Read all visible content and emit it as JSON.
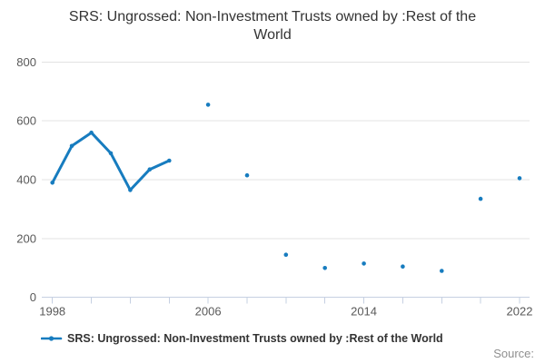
{
  "title": "SRS: Ungrossed: Non-Investment Trusts owned by :Rest of the World",
  "legend": {
    "label": "SRS: Ungrossed: Non-Investment Trusts owned by :Rest of the World"
  },
  "source_label": "Source:",
  "colors": {
    "series": "#177cbf",
    "grid": "#e3e3e3",
    "axis": "#c6d0e2",
    "text": "#333333",
    "tick_label": "#595959",
    "source": "#8f8f8f"
  },
  "chart_data": {
    "type": "line",
    "title": "SRS: Ungrossed: Non-Investment Trusts owned by :Rest of the World",
    "xlabel": "",
    "ylabel": "",
    "x_range": [
      1998,
      2022
    ],
    "x_tick_interval": 2,
    "x_ticks_labeled": [
      1998,
      2006,
      2014,
      2022
    ],
    "y_ticks": [
      0,
      200,
      400,
      600,
      800
    ],
    "ylim": [
      0,
      800
    ],
    "grid": true,
    "legend_position": "bottom",
    "marker": "dot",
    "note": "points with a 1-year gap are joined by a line; biennial points 2006-2022 are isolated markers",
    "series": [
      {
        "name": "SRS: Ungrossed: Non-Investment Trusts owned by :Rest of the World",
        "points": [
          [
            1998,
            390
          ],
          [
            1999,
            515
          ],
          [
            2000,
            560
          ],
          [
            2001,
            490
          ],
          [
            2002,
            365
          ],
          [
            2003,
            435
          ],
          [
            2004,
            465
          ],
          [
            2006,
            655
          ],
          [
            2008,
            415
          ],
          [
            2010,
            145
          ],
          [
            2012,
            100
          ],
          [
            2014,
            115
          ],
          [
            2016,
            105
          ],
          [
            2018,
            90
          ],
          [
            2020,
            335
          ],
          [
            2022,
            405
          ]
        ]
      }
    ]
  }
}
